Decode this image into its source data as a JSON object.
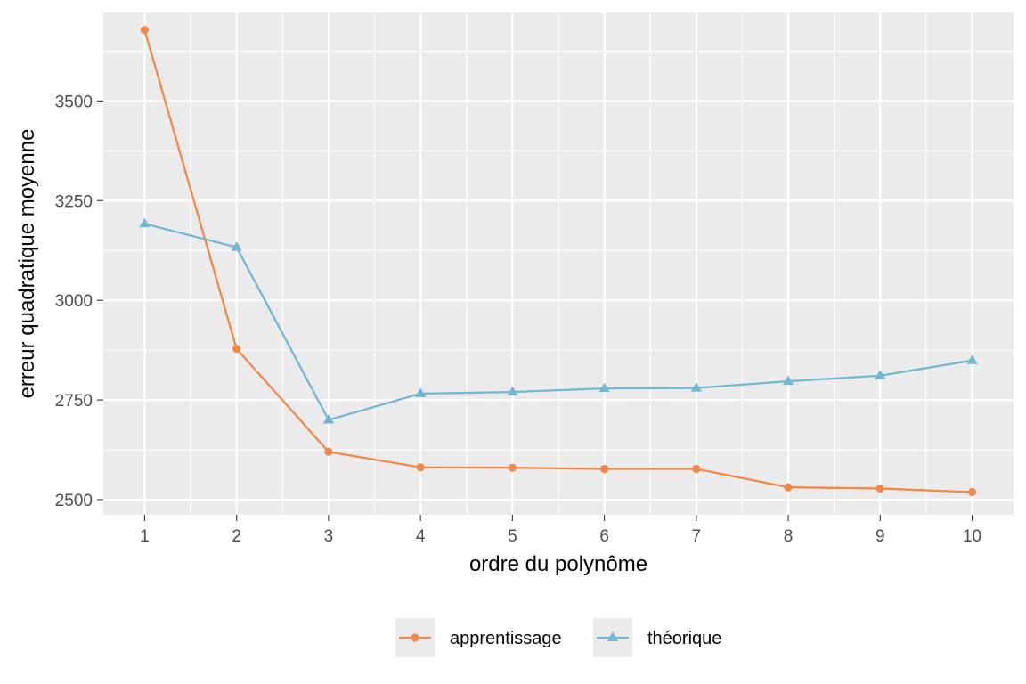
{
  "chart_data": {
    "type": "line",
    "title": "",
    "xlabel": "ordre du polynôme",
    "ylabel": "erreur quadratique moyenne",
    "x": [
      1,
      2,
      3,
      4,
      5,
      6,
      7,
      8,
      9,
      10
    ],
    "x_ticks": [
      "1",
      "2",
      "3",
      "4",
      "5",
      "6",
      "7",
      "8",
      "9",
      "10"
    ],
    "y_ticks": [
      "2500",
      "2750",
      "3000",
      "3250",
      "3500"
    ],
    "xlim": [
      0.55,
      10.45
    ],
    "ylim": [
      2462,
      3722
    ],
    "grid": true,
    "legend_position": "bottom",
    "series": [
      {
        "name": "apprentissage",
        "color": "#F0894A",
        "marker": "circle",
        "values": [
          3678,
          2878,
          2620,
          2581,
          2580,
          2577,
          2577,
          2531,
          2528,
          2519
        ]
      },
      {
        "name": "théorique",
        "color": "#73B8D3",
        "marker": "triangle",
        "values": [
          3192,
          3133,
          2700,
          2766,
          2770,
          2779,
          2780,
          2797,
          2811,
          2849
        ]
      }
    ]
  }
}
